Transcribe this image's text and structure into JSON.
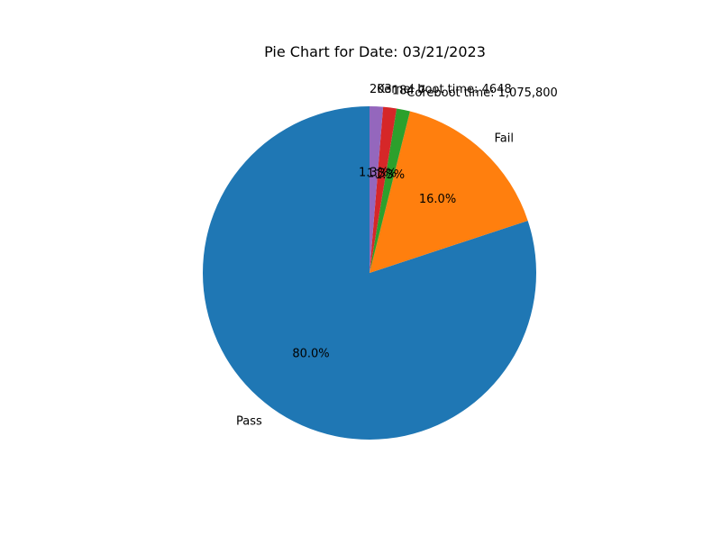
{
  "chart_data": {
    "type": "pie",
    "title": "Pie Chart for Date: 03/21/2023",
    "start_angle_deg": 90,
    "direction": "counterclockwise",
    "slices": [
      {
        "label": "Pass",
        "value": 80.0,
        "pct_label": "80.0%",
        "color": "#1f77b4"
      },
      {
        "label": "Fail",
        "value": 16.0,
        "pct_label": "16.0%",
        "color": "#ff7f0e"
      },
      {
        "label": "Coreboot time: 1,075,800",
        "value": 1.3,
        "pct_label": "1.3%",
        "color": "#2ca02c"
      },
      {
        "label": "184.7",
        "value": 1.3,
        "pct_label": "1.3%",
        "color": "#d62728"
      },
      {
        "label": "Kernel boot time: 4648",
        "value": 1.3,
        "pct_label": "1.3%",
        "color": "#9467bd"
      },
      {
        "label": "203",
        "value": 0.0,
        "pct_label": "",
        "color": "#8c564b"
      }
    ]
  }
}
